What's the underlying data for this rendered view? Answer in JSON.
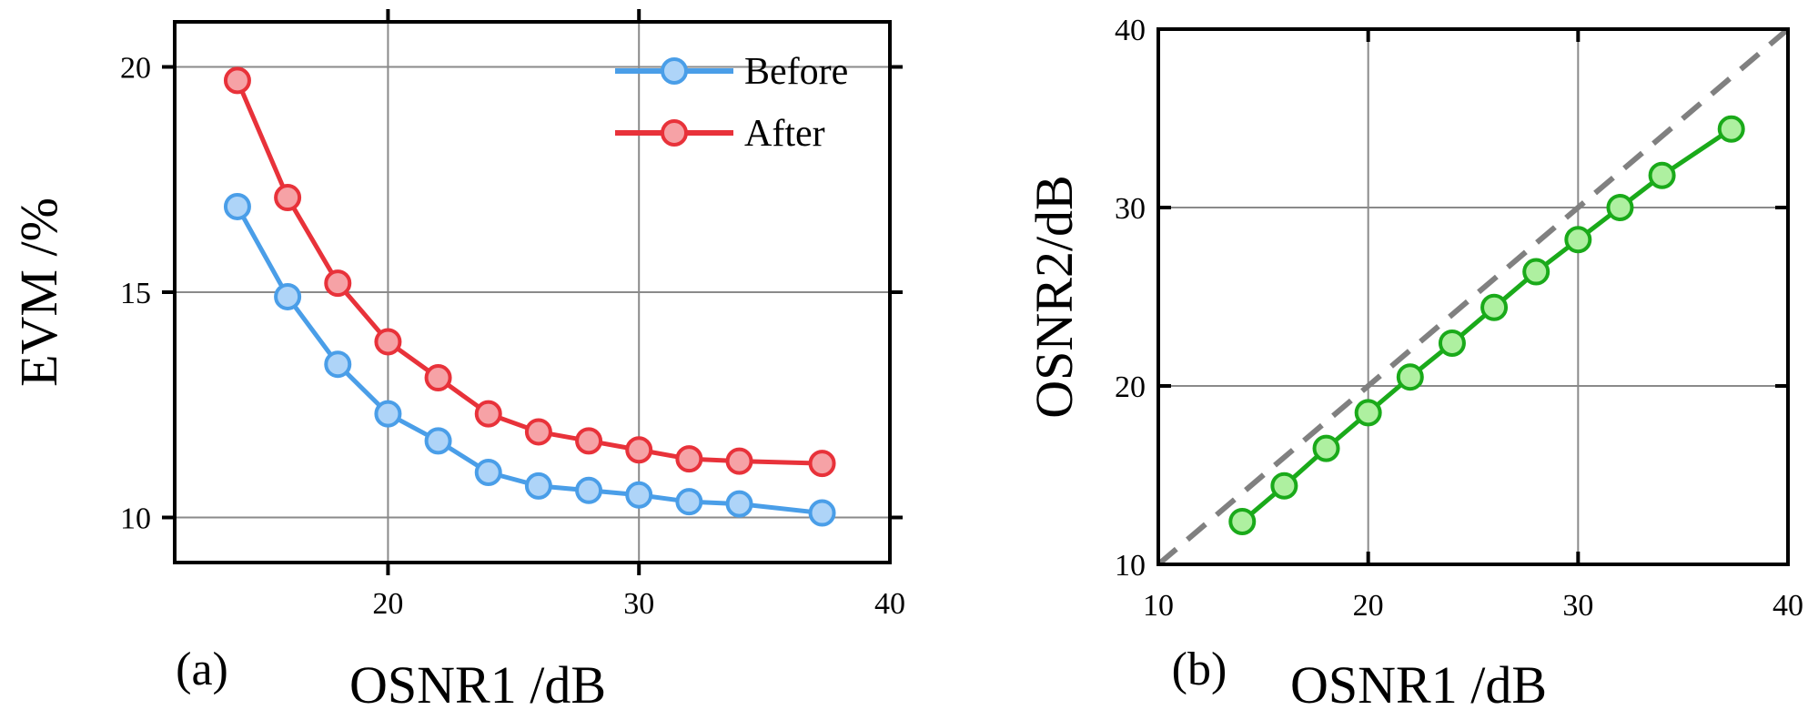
{
  "chart_data": [
    {
      "panel": "(a)",
      "type": "line",
      "xlabel": "OSNR1 /dB",
      "ylabel": "EVM /%",
      "xlim": [
        11.5,
        40
      ],
      "ylim": [
        9,
        21
      ],
      "xticks": [
        20,
        30,
        40
      ],
      "yticks": [
        10,
        15,
        20
      ],
      "grid": true,
      "legend": "top-right",
      "series": [
        {
          "name": "Before",
          "color": "#4a9ee8",
          "fill": "#aed4f8",
          "x": [
            14,
            16,
            18,
            20,
            22,
            24,
            26,
            28,
            30,
            32,
            34,
            37.3
          ],
          "values": [
            16.9,
            14.9,
            13.4,
            12.3,
            11.7,
            11.0,
            10.7,
            10.6,
            10.5,
            10.35,
            10.3,
            10.1
          ]
        },
        {
          "name": "After",
          "color": "#e8323a",
          "fill": "#f6a2a6",
          "x": [
            14,
            16,
            18,
            20,
            22,
            24,
            26,
            28,
            30,
            32,
            34,
            37.3
          ],
          "values": [
            19.7,
            17.1,
            15.2,
            13.9,
            13.1,
            12.3,
            11.9,
            11.7,
            11.5,
            11.3,
            11.25,
            11.2
          ]
        }
      ]
    },
    {
      "panel": "(b)",
      "type": "line",
      "xlabel": "OSNR1 /dB",
      "ylabel": "OSNR2/dB",
      "xlim": [
        10,
        40
      ],
      "ylim": [
        10,
        40
      ],
      "xticks": [
        10,
        20,
        30,
        40
      ],
      "yticks": [
        10,
        20,
        30,
        40
      ],
      "grid": true,
      "series": [
        {
          "name": "OSNR2",
          "color": "#1aaa1a",
          "fill": "#aef0a0",
          "x": [
            14,
            16,
            18,
            20,
            22,
            24,
            26,
            28,
            30,
            32,
            34,
            37.3
          ],
          "values": [
            12.4,
            14.4,
            16.5,
            18.5,
            20.5,
            22.4,
            24.4,
            26.4,
            28.2,
            30.0,
            31.8,
            34.4
          ]
        }
      ],
      "reference_line": {
        "name": "y = x",
        "style": "dashed",
        "color": "#808080",
        "x": [
          10,
          40
        ],
        "values": [
          10,
          40
        ]
      }
    }
  ]
}
